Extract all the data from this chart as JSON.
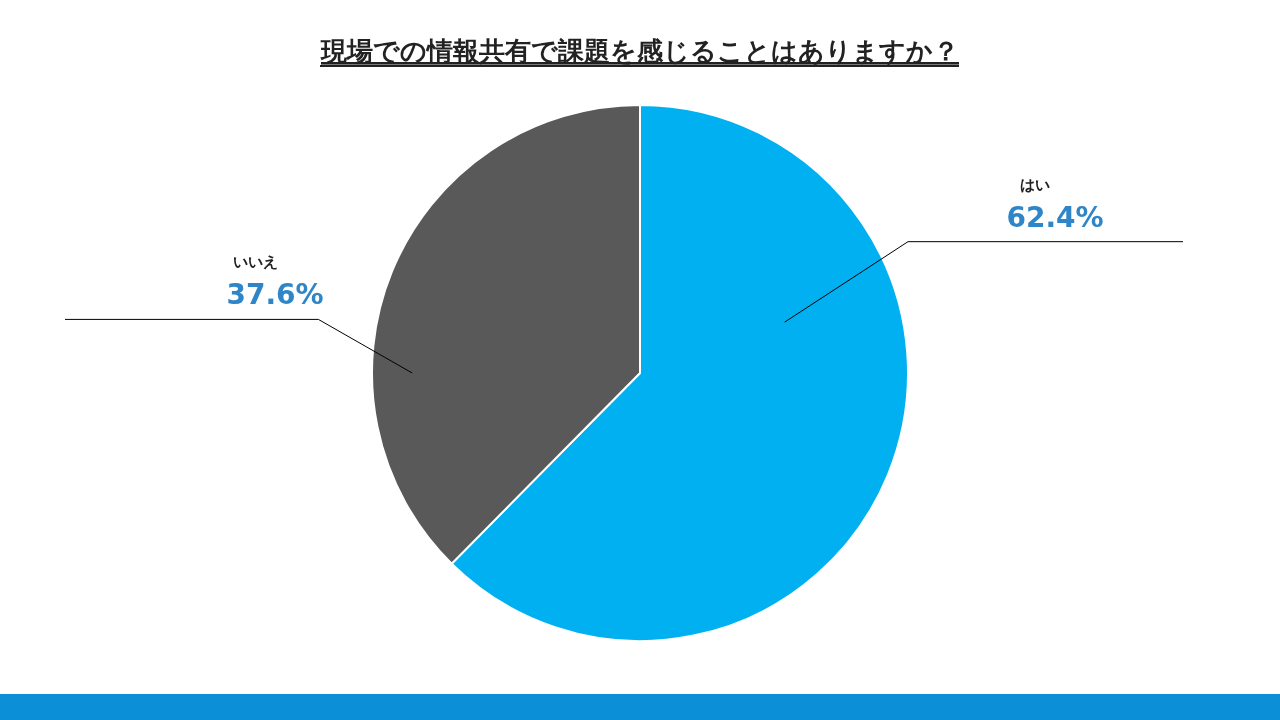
{
  "chart_data": {
    "type": "pie",
    "title": "現場での情報共有で課題を感じることはありますか？",
    "categories": [
      "はい",
      "いいえ"
    ],
    "values": [
      62.4,
      37.6
    ],
    "value_labels": [
      "62.4%",
      "37.6%"
    ],
    "colors": [
      "#00b0f0",
      "#595959"
    ]
  }
}
